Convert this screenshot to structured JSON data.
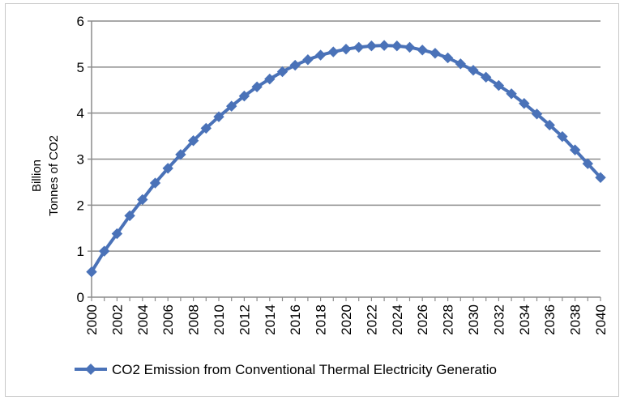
{
  "chart_data": {
    "type": "line",
    "title": "",
    "xlabel": "",
    "ylabel_lines": [
      "Billion",
      "Tonnes of CO2"
    ],
    "ylim": [
      0,
      6
    ],
    "y_ticks": [
      "0",
      "1",
      "2",
      "3",
      "4",
      "5",
      "6"
    ],
    "x_tick_labels": [
      "2000",
      "2002",
      "2004",
      "2006",
      "2008",
      "2010",
      "2012",
      "2014",
      "2016",
      "2018",
      "2020",
      "2022",
      "2024",
      "2026",
      "2028",
      "2030",
      "2032",
      "2034",
      "2036",
      "2038",
      "2040"
    ],
    "grid": "horizontal",
    "legend_position": "bottom",
    "colors": {
      "series": "#4a72b8",
      "grid": "#8c8c8c",
      "axis": "#8c8c8c"
    },
    "x": [
      2000,
      2001,
      2002,
      2003,
      2004,
      2005,
      2006,
      2007,
      2008,
      2009,
      2010,
      2011,
      2012,
      2013,
      2014,
      2015,
      2016,
      2017,
      2018,
      2019,
      2020,
      2021,
      2022,
      2023,
      2024,
      2025,
      2026,
      2027,
      2028,
      2029,
      2030,
      2031,
      2032,
      2033,
      2034,
      2035,
      2036,
      2037,
      2038,
      2039,
      2040
    ],
    "series": [
      {
        "name": "CO2 Emission from Conventional Thermal Electricity Generatio",
        "marker": "diamond",
        "values": [
          0.55,
          1.0,
          1.38,
          1.77,
          2.12,
          2.48,
          2.8,
          3.1,
          3.4,
          3.67,
          3.92,
          4.15,
          4.37,
          4.57,
          4.74,
          4.9,
          5.04,
          5.16,
          5.26,
          5.33,
          5.39,
          5.43,
          5.46,
          5.47,
          5.46,
          5.43,
          5.37,
          5.3,
          5.2,
          5.07,
          4.93,
          4.78,
          4.6,
          4.42,
          4.21,
          3.98,
          3.74,
          3.49,
          3.2,
          2.9,
          2.6
        ]
      }
    ]
  }
}
